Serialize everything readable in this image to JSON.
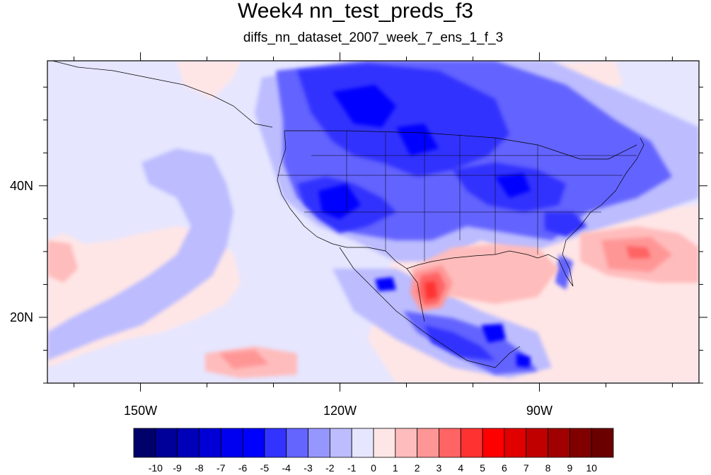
{
  "title": "Week4 nn_test_preds_f3",
  "subtitle": "diffs_nn_dataset_2007_week_7_ens_1_f_3",
  "map": {
    "extent": {
      "lon_min": -164,
      "lon_max": -66,
      "lat_min": 10,
      "lat_max": 59
    },
    "lat_labels": [
      {
        "text": "40N",
        "lat": 40
      },
      {
        "text": "20N",
        "lat": 20
      }
    ],
    "lon_labels": [
      {
        "text": "150W",
        "lon": -150
      },
      {
        "text": "120W",
        "lon": -120
      },
      {
        "text": "90W",
        "lon": -90
      }
    ],
    "anomaly_regions": [
      {
        "label": "northern-plains-canada-cold",
        "value": -4,
        "lon": -105,
        "lat": 48
      },
      {
        "label": "southwest-cold",
        "value": -5,
        "lon": -112,
        "lat": 36
      },
      {
        "label": "southeast-cold",
        "value": -4,
        "lon": -85,
        "lat": 35
      },
      {
        "label": "central-mexico-cold",
        "value": -5,
        "lon": -97,
        "lat": 17
      },
      {
        "label": "northern-mexico-warm",
        "value": 5,
        "lon": -101,
        "lat": 25
      },
      {
        "label": "gulf-warm",
        "value": 2,
        "lon": -92,
        "lat": 26
      },
      {
        "label": "atlantic-warm",
        "value": 3,
        "lon": -72,
        "lat": 30
      },
      {
        "label": "pacific-southwest-warm",
        "value": 2,
        "lon": -130,
        "lat": 14
      }
    ]
  },
  "colorbar": {
    "colors": [
      "#00006b",
      "#000099",
      "#0000b8",
      "#0000d6",
      "#0000f0",
      "#0000ff",
      "#3333ff",
      "#6464ff",
      "#9696ff",
      "#bcbcff",
      "#e6e6ff",
      "#ffe6e6",
      "#ffbcbc",
      "#ff9696",
      "#ff6464",
      "#ff3232",
      "#ff0000",
      "#e00000",
      "#c00000",
      "#a00000",
      "#800000",
      "#6a0000"
    ],
    "tick_labels": [
      "-10",
      "-9",
      "-8",
      "-7",
      "-6",
      "-5",
      "-4",
      "-3",
      "-2",
      "-1",
      "0",
      "1",
      "2",
      "3",
      "4",
      "5",
      "6",
      "7",
      "8",
      "9",
      "10"
    ]
  }
}
